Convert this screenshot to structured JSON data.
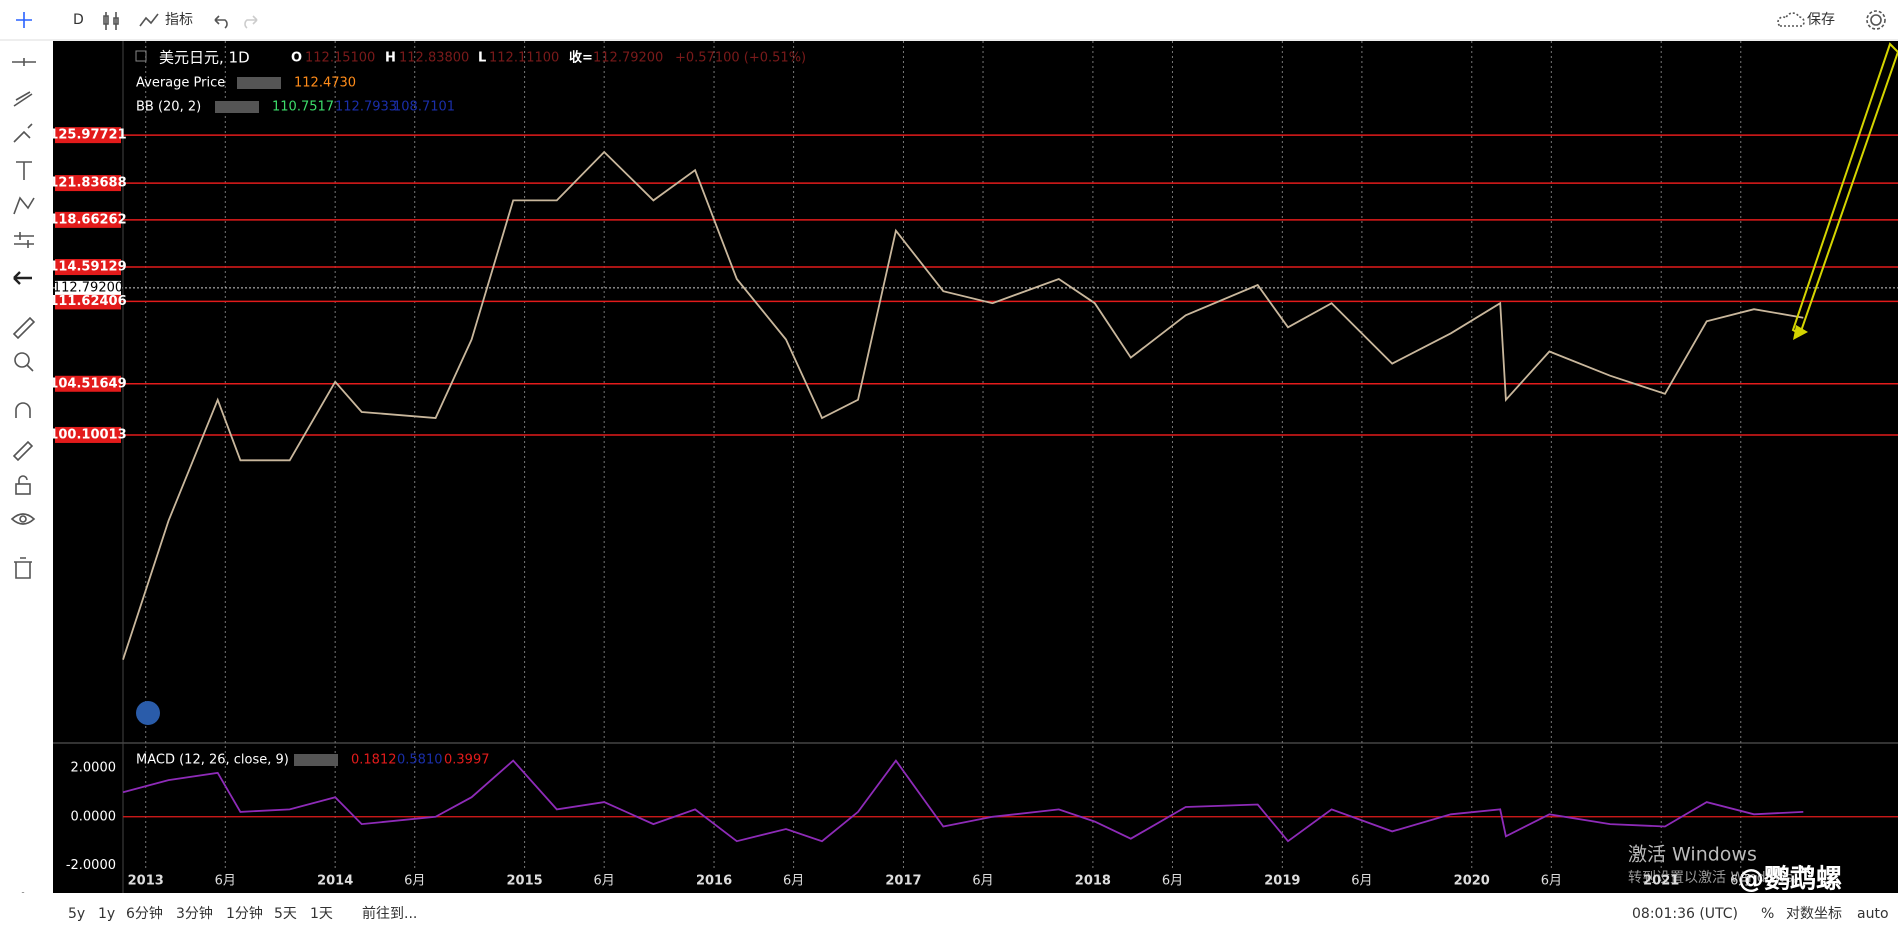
{
  "toolbar": {
    "interval": "D",
    "indicators": "指标",
    "save": "保存"
  },
  "legend": {
    "symbol": "美元日元, 1D",
    "open_label": "O",
    "open": "112.15100",
    "high_label": "H",
    "high": "112.83800",
    "low_label": "L",
    "low": "112.11100",
    "close_label": "收=",
    "close": "112.79200",
    "change": "+0.57100 (+0.51%)",
    "avg_name": "Average Price",
    "avg_value": "112.4730",
    "bb_name": "BB (20, 2)",
    "bb_mid": "110.7517",
    "bb_upper": "112.7933",
    "bb_lower": "108.7101",
    "macd_name": "MACD (12, 26, close, 9)",
    "macd_hist": "0.1812",
    "macd_macd": "0.5810",
    "macd_signal": "0.3997"
  },
  "chart_data": [
    {
      "type": "line",
      "name": "USDJPY",
      "color": "#c9b79c",
      "x": [
        2012.88,
        2013.12,
        2013.38,
        2013.5,
        2013.76,
        2014.0,
        2014.14,
        2014.53,
        2014.72,
        2014.94,
        2015.17,
        2015.42,
        2015.68,
        2015.9,
        2016.12,
        2016.38,
        2016.57,
        2016.76,
        2016.96,
        2017.21,
        2017.47,
        2017.82,
        2018.01,
        2018.2,
        2018.49,
        2018.87,
        2019.03,
        2019.26,
        2019.58,
        2019.89,
        2020.15,
        2020.18,
        2020.41,
        2020.73,
        2021.02,
        2021.24,
        2021.49,
        2021.75
      ],
      "values": [
        80.7,
        92.69,
        103.13,
        97.91,
        97.91,
        104.69,
        102.08,
        101.56,
        108.34,
        120.34,
        120.34,
        124.52,
        120.34,
        122.95,
        113.56,
        108.34,
        101.56,
        103.13,
        117.73,
        112.51,
        111.47,
        113.56,
        111.47,
        106.78,
        110.43,
        113.04,
        109.39,
        111.47,
        106.26,
        108.87,
        111.47,
        103.13,
        107.3,
        105.21,
        103.65,
        109.91,
        110.95,
        110.22
      ],
      "xlim": [
        2012.88,
        2022.25
      ],
      "ylim": [
        73.6,
        134.1
      ],
      "xticks": [
        2013,
        {
          "value": 2013.42,
          "label": "6月"
        },
        2014,
        {
          "value": 2014.42,
          "label": "6月"
        },
        2015,
        {
          "value": 2015.42,
          "label": "6月"
        },
        2016,
        {
          "value": 2016.42,
          "label": "6月"
        },
        2017,
        {
          "value": 2017.42,
          "label": "6月"
        },
        2018,
        {
          "value": 2018.42,
          "label": "6月"
        },
        2019,
        {
          "value": 2019.42,
          "label": "6月"
        },
        2020,
        {
          "value": 2020.42,
          "label": "6月"
        },
        2021,
        {
          "value": 2021.42,
          "label": "6月"
        }
      ],
      "levels": [
        125.97721,
        121.83688,
        118.66262,
        114.59129,
        111.62406,
        104.51649,
        100.10013
      ],
      "level_color": "#e31b1b",
      "last_price": {
        "value": 112.792,
        "label": "112.79200"
      },
      "grid": true
    },
    {
      "type": "line",
      "name": "MACD",
      "color": "#8e2bb8",
      "x": [
        2012.88,
        2013.12,
        2013.38,
        2013.5,
        2013.76,
        2014.0,
        2014.14,
        2014.53,
        2014.72,
        2014.94,
        2015.17,
        2015.42,
        2015.68,
        2015.9,
        2016.12,
        2016.38,
        2016.57,
        2016.76,
        2016.96,
        2017.21,
        2017.47,
        2017.82,
        2018.01,
        2018.2,
        2018.49,
        2018.87,
        2019.03,
        2019.26,
        2019.58,
        2019.89,
        2020.15,
        2020.18,
        2020.41,
        2020.73,
        2021.02,
        2021.24,
        2021.49,
        2021.75
      ],
      "values": [
        1.0,
        1.5,
        1.8,
        0.2,
        0.3,
        0.8,
        -0.3,
        0.0,
        0.8,
        2.3,
        0.3,
        0.6,
        -0.3,
        0.3,
        -1.0,
        -0.5,
        -1.0,
        0.2,
        2.3,
        -0.4,
        0.0,
        0.3,
        -0.2,
        -0.9,
        0.4,
        0.5,
        -1.0,
        0.3,
        -0.6,
        0.1,
        0.3,
        -0.8,
        0.1,
        -0.3,
        -0.4,
        0.6,
        0.1,
        0.2
      ],
      "xlim": [
        2012.88,
        2022.25
      ],
      "ylim": [
        -2.1,
        2.94
      ],
      "yticks": [
        {
          "value": 2,
          "label": "2.0000"
        },
        {
          "value": 0,
          "label": "0.0000"
        },
        {
          "value": -2,
          "label": "-2.0000"
        }
      ]
    }
  ],
  "bottom_bar": {
    "ranges": [
      "5y",
      "1y",
      "6分钟",
      "3分钟",
      "1分钟",
      "5天",
      "1天"
    ],
    "goto": "前往到...",
    "clock": "08:01:36 (UTC)",
    "percent": "%",
    "log": "对数坐标",
    "auto": "auto"
  },
  "watermark": {
    "activate": "激活 Windows",
    "settings": "转到设置以激活 Windows。",
    "author": "@鹦鹉螺"
  }
}
